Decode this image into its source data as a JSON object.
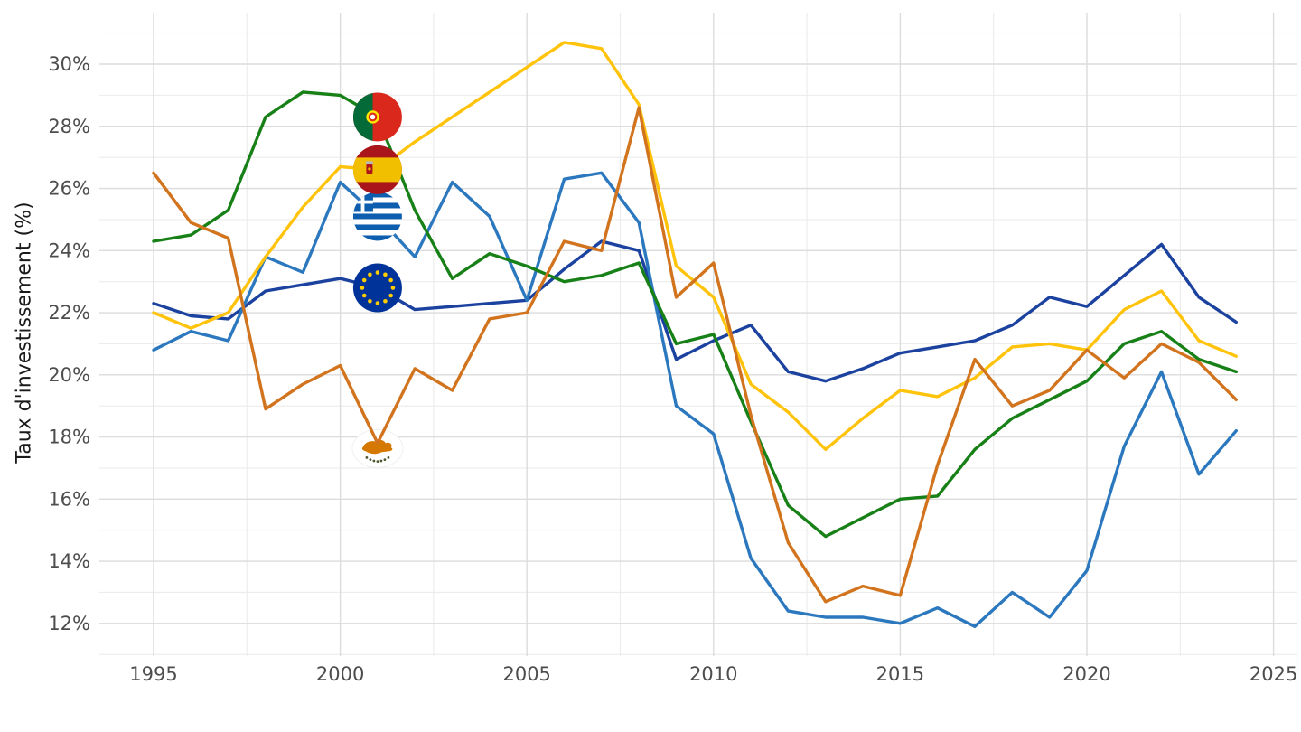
{
  "chart": {
    "y_axis": {
      "title": "Taux d'investissement (%)",
      "tick_suffix": "%",
      "major_ticks": [
        12,
        14,
        16,
        18,
        20,
        22,
        24,
        26,
        28,
        30
      ],
      "minor_ticks": [
        11,
        13,
        15,
        17,
        19,
        21,
        23,
        25,
        27,
        29,
        31
      ],
      "range": [
        11,
        31
      ]
    },
    "x_axis": {
      "major_ticks": [
        1995,
        2000,
        2005,
        2010,
        2015,
        2020,
        2025
      ],
      "minor_ticks": [
        1997.5,
        2002.5,
        2007.5,
        2012.5,
        2017.5,
        2022.5
      ],
      "range": [
        1993.5,
        2025.7
      ]
    },
    "style": {
      "background": "#ffffff",
      "grid_major_color": "#dcdcdc",
      "grid_minor_color": "#ececec",
      "axis_text_color": "#4d4d4d",
      "axis_title_color": "#1a1a1a",
      "line_width": 3.4
    }
  },
  "chart_data": {
    "type": "line",
    "title": "",
    "xlabel": "",
    "ylabel": "Taux d'investissement (%)",
    "ylim": [
      11,
      31
    ],
    "grid": "on",
    "legend": "flags-on-lines-at-2001",
    "x": [
      1995,
      1996,
      1997,
      1998,
      1999,
      2000,
      2001,
      2002,
      2003,
      2004,
      2005,
      2006,
      2007,
      2008,
      2009,
      2010,
      2011,
      2012,
      2013,
      2014,
      2015,
      2016,
      2017,
      2018,
      2019,
      2020,
      2021,
      2022,
      2023,
      2024
    ],
    "series": [
      {
        "id": "eu",
        "name": "Union européenne",
        "color": "#1c42a0",
        "flag": "eu",
        "flag_year": 2001,
        "values": [
          22.3,
          21.9,
          21.8,
          22.7,
          22.9,
          23.1,
          22.8,
          22.1,
          22.2,
          22.3,
          22.4,
          23.4,
          24.3,
          24.0,
          20.5,
          21.1,
          21.6,
          20.1,
          19.8,
          20.2,
          20.7,
          20.9,
          21.1,
          21.6,
          22.5,
          22.2,
          23.2,
          24.2,
          22.5,
          21.7
        ]
      },
      {
        "id": "greece",
        "name": "Grèce",
        "color": "#2b78be",
        "flag": "el",
        "flag_year": 2001,
        "values": [
          20.8,
          21.4,
          21.1,
          23.8,
          23.3,
          26.2,
          25.1,
          23.8,
          26.2,
          25.1,
          22.4,
          26.3,
          26.5,
          24.9,
          19.0,
          18.1,
          14.1,
          12.4,
          12.2,
          12.2,
          12.0,
          12.5,
          11.9,
          13.0,
          12.2,
          13.7,
          17.7,
          20.1,
          16.8,
          18.2
        ]
      },
      {
        "id": "spain",
        "name": "Espagne",
        "color": "#FFC30B",
        "flag": "es",
        "flag_year": 2001,
        "values": [
          22.0,
          21.5,
          22.0,
          23.8,
          25.4,
          26.7,
          26.6,
          27.5,
          28.3,
          29.1,
          29.9,
          30.7,
          30.5,
          28.7,
          23.5,
          22.5,
          19.7,
          18.8,
          17.6,
          18.6,
          19.5,
          19.3,
          19.9,
          20.9,
          21.0,
          20.8,
          22.1,
          22.7,
          21.1,
          20.6
        ]
      },
      {
        "id": "portugal",
        "name": "Portugal",
        "color": "#178017",
        "flag": "pt",
        "flag_year": 2001,
        "values": [
          24.3,
          24.5,
          25.3,
          28.3,
          29.1,
          29.0,
          28.3,
          25.3,
          23.1,
          23.9,
          23.5,
          23.0,
          23.2,
          23.6,
          21.0,
          21.3,
          18.5,
          15.8,
          14.8,
          15.4,
          16.0,
          16.1,
          17.6,
          18.6,
          19.2,
          19.8,
          21.0,
          21.4,
          20.5,
          20.1
        ]
      },
      {
        "id": "cyprus",
        "name": "Chypre",
        "color": "#d2731d",
        "flag": "cy",
        "flag_year": 2001,
        "values": [
          26.5,
          24.9,
          24.4,
          18.9,
          19.7,
          20.3,
          17.8,
          20.2,
          19.5,
          21.8,
          22.0,
          24.3,
          24.0,
          28.6,
          22.5,
          23.6,
          18.7,
          14.6,
          12.7,
          13.2,
          12.9,
          17.1,
          20.5,
          19.0,
          19.5,
          20.8,
          19.9,
          21.0,
          20.4,
          19.2
        ]
      }
    ]
  }
}
